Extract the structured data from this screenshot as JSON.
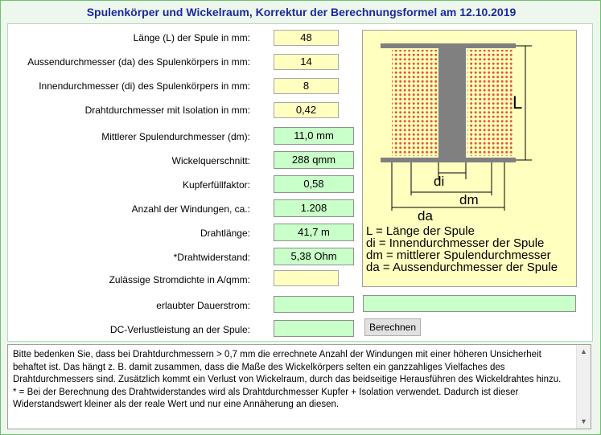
{
  "title": "Spulenkörper und Wickelraum, Korrektur der Berechnungsformel am 12.10.2019",
  "inputs": [
    {
      "label": "Länge (L) der Spule in mm:",
      "value": "48"
    },
    {
      "label": "Aussendurchmesser (da) des Spulenkörpers in mm:",
      "value": "14"
    },
    {
      "label": "Innendurchmesser (di) des Spulenkörpers in mm:",
      "value": "8"
    },
    {
      "label": "Drahtdurchmesser mit Isolation in mm:",
      "value": "0,42"
    }
  ],
  "outputs": [
    {
      "label": "Mittlerer Spulendurchmesser (dm):",
      "value": "11,0 mm"
    },
    {
      "label": "Wickelquerschnitt:",
      "value": "288 qmm"
    },
    {
      "label": "Kupferfüllfaktor:",
      "value": "0,58"
    },
    {
      "label": "Anzahl der Windungen, ca.:",
      "value": "1.208"
    },
    {
      "label": "Drahtlänge:",
      "value": "41,7 m"
    },
    {
      "label": "*Drahtwiderstand:",
      "value": "5,38 Ohm"
    }
  ],
  "current_density": {
    "label": "Zulässige Stromdichte in A/qmm:",
    "value": ""
  },
  "permitted_current": {
    "label": "erlaubter Dauerstrom:",
    "value": "",
    "extra_value": ""
  },
  "dc_loss": {
    "label": "DC-Verlustleistung an der Spule:",
    "value": ""
  },
  "calculate_label": "Berechnen",
  "diagram": {
    "dim_L": "L",
    "dim_di": "di",
    "dim_dm": "dm",
    "dim_da": "da",
    "legend": [
      "L = Länge der Spule",
      "di = Innendurchmesser der Spule",
      "dm = mittlerer Spulendurchmesser",
      "da = Aussendurchmesser der Spule"
    ]
  },
  "notes": [
    "Bitte bedenken Sie, dass bei Drahtdurchmessern > 0,7 mm die errechnete Anzahl der Windungen mit einer höheren Unsicherheit behaftet ist. Das hängt z. B. damit zusammen, dass die Maße des Wickelkörpers selten ein ganzzahliges Vielfaches des Drahtdurchmessers sind. Zusätzlich kommt ein Verlust von Wickelraum, durch das beidseitige Herausführen des Wickeldrahtes hinzu.",
    "* = Bei der Berechnung des Drahtwiderstandes wird als Drahtdurchmesser Kupfer + Isolation verwendet. Dadurch ist dieser Widerstandswert kleiner als der reale Wert und nur eine Annäherung an diesen."
  ],
  "colors": {
    "title": "#1a2a9c",
    "input_bg": "#ffffc0",
    "output_bg": "#c9ffc9",
    "coil_dots": "#e8552a",
    "core": "#808080"
  },
  "icons": {
    "scroll_up": "triangle-up-icon",
    "scroll_down": "triangle-down-icon"
  }
}
